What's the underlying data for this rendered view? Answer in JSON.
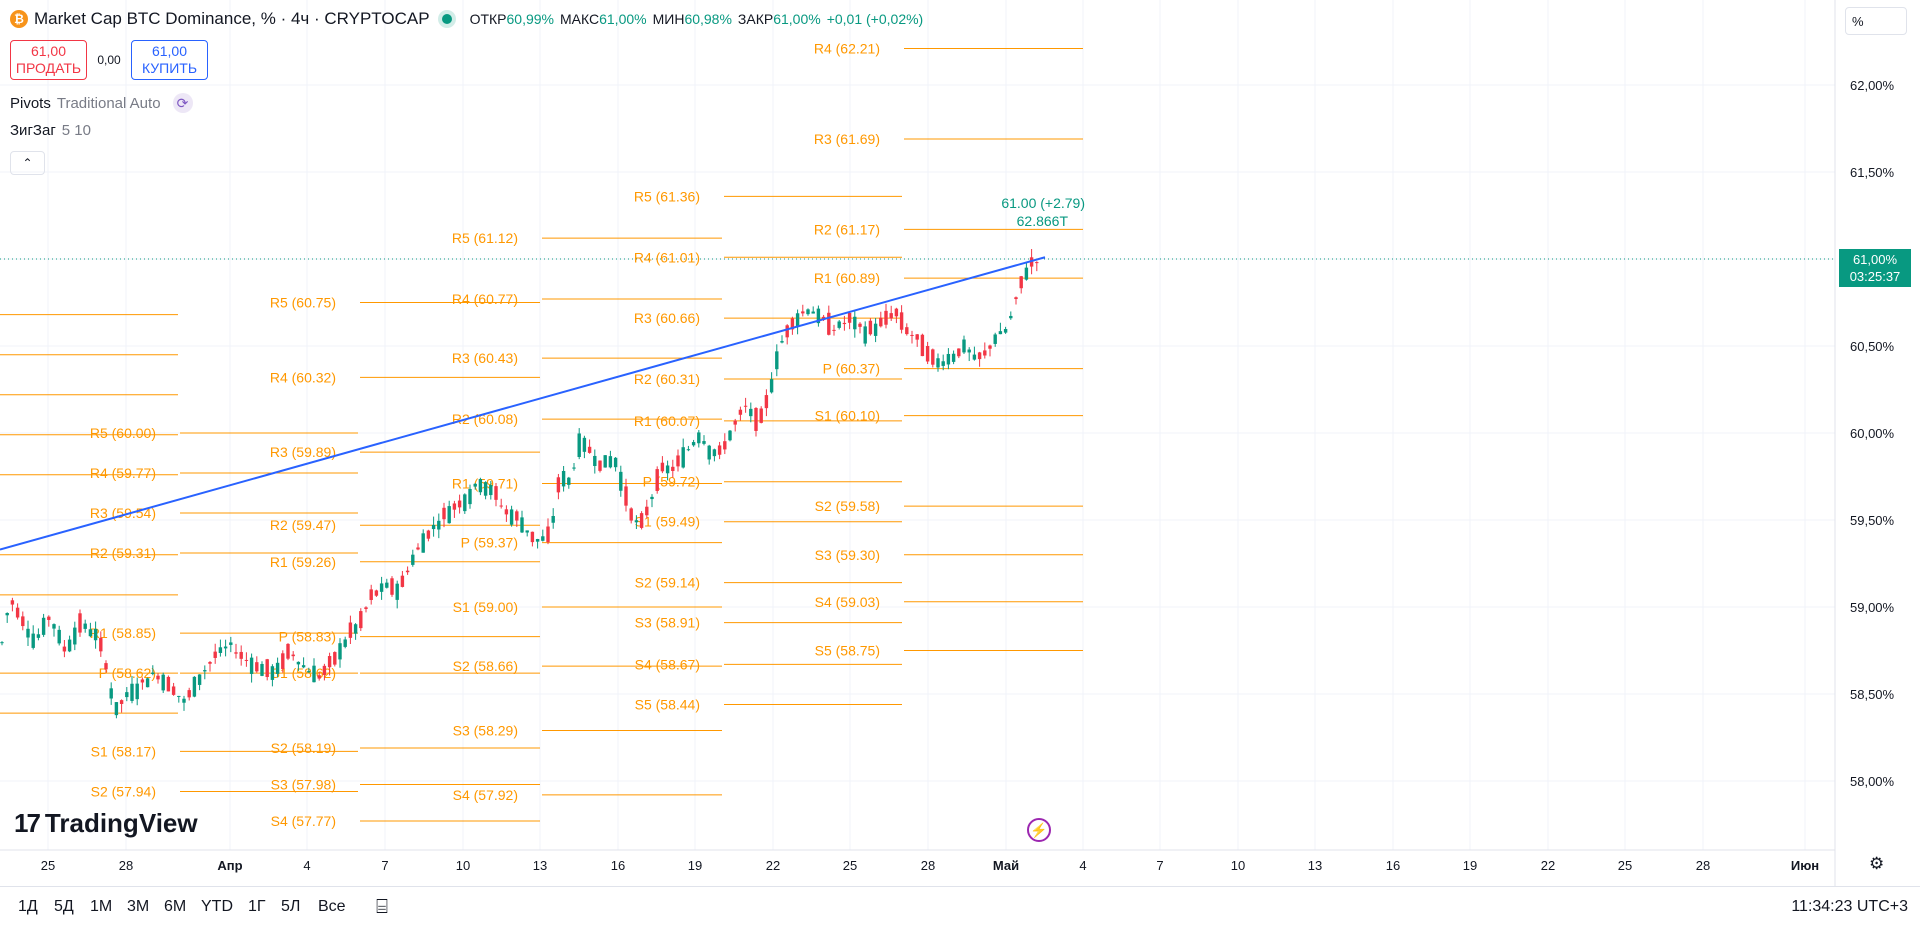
{
  "header": {
    "title": "Market Cap BTC Dominance, % · 4ч · CRYPTOCAP",
    "btc_icon": "₿",
    "ohlc": [
      {
        "key": "ОТКР",
        "value": "60,99%"
      },
      {
        "key": "МАКС",
        "value": "61,00%"
      },
      {
        "key": "МИН",
        "value": "60,98%"
      },
      {
        "key": "ЗАКР",
        "value": "61,00%"
      }
    ],
    "change": "+0,01 (+0,02%)"
  },
  "trade": {
    "sell_price": "61,00",
    "sell_label": "ПРОДАТЬ",
    "spread": "0,00",
    "buy_price": "61,00",
    "buy_label": "КУПИТЬ"
  },
  "indicators": {
    "pivots_name": "Pivots",
    "pivots_params": "Traditional Auto",
    "zigzag_name": "ЗигЗаг",
    "zigzag_params": "5 10",
    "collapse_icon": "⌃"
  },
  "price_axis": {
    "unit": "%",
    "labels": [
      "62,00%",
      "61,50%",
      "61,00%",
      "60,50%",
      "60,00%",
      "59,50%",
      "59,00%",
      "58,50%",
      "58,00%"
    ],
    "current_price": "61,00%",
    "countdown": "03:25:37"
  },
  "time_axis": {
    "labels": [
      "25",
      "28",
      "Апр",
      "4",
      "7",
      "10",
      "13",
      "16",
      "19",
      "22",
      "25",
      "28",
      "Май",
      "4",
      "7",
      "10",
      "13",
      "16",
      "19",
      "22",
      "25",
      "28",
      "Июн"
    ]
  },
  "annotation": {
    "last_change": "61.00 (+2.79)",
    "volume": "62.866T"
  },
  "chart_data": {
    "type": "candlestick",
    "symbol": "Market Cap BTC Dominance, %",
    "interval": "4ч",
    "ylim": [
      57.85,
      62.35
    ],
    "y_unit": "%",
    "current_price": 61.0,
    "trendline": {
      "from": [
        0,
        59.33
      ],
      "to": [
        1045,
        61.01
      ]
    },
    "pivot_sets": [
      {
        "levels": [
          {
            "label": "R5 (60.00)",
            "value": 60.0
          },
          {
            "label": "R4 (59.77)",
            "value": 59.77
          },
          {
            "label": "R3 (59.54)",
            "value": 59.54
          },
          {
            "label": "R2 (59.31)",
            "value": 59.31
          },
          {
            "label": "R1 (58.85)",
            "value": 58.85
          },
          {
            "label": "P (58.62)",
            "value": 58.62
          },
          {
            "label": "S1 (58.17)",
            "value": 58.17
          },
          {
            "label": "S2 (57.94)",
            "value": 57.94
          }
        ]
      },
      {
        "levels": [
          {
            "label": "R5 (60.75)",
            "value": 60.75
          },
          {
            "label": "R4 (60.32)",
            "value": 60.32
          },
          {
            "label": "R3 (59.89)",
            "value": 59.89
          },
          {
            "label": "R2 (59.47)",
            "value": 59.47
          },
          {
            "label": "R1 (59.26)",
            "value": 59.26
          },
          {
            "label": "P (58.83)",
            "value": 58.83
          },
          {
            "label": "S1 (58.62)",
            "value": 58.62
          },
          {
            "label": "S2 (58.19)",
            "value": 58.19
          },
          {
            "label": "S3 (57.98)",
            "value": 57.98
          },
          {
            "label": "S4 (57.77)",
            "value": 57.77
          }
        ]
      },
      {
        "levels": [
          {
            "label": "R5 (61.12)",
            "value": 61.12
          },
          {
            "label": "R4 (60.77)",
            "value": 60.77
          },
          {
            "label": "R3 (60.43)",
            "value": 60.43
          },
          {
            "label": "R2 (60.08)",
            "value": 60.08
          },
          {
            "label": "R1 (59.71)",
            "value": 59.71
          },
          {
            "label": "P (59.37)",
            "value": 59.37
          },
          {
            "label": "S1 (59.00)",
            "value": 59.0
          },
          {
            "label": "S2 (58.66)",
            "value": 58.66
          },
          {
            "label": "S3 (58.29)",
            "value": 58.29
          },
          {
            "label": "S4 (57.92)",
            "value": 57.92
          }
        ]
      },
      {
        "levels": [
          {
            "label": "R5 (61.36)",
            "value": 61.36
          },
          {
            "label": "R4 (61.01)",
            "value": 61.01
          },
          {
            "label": "R3 (60.66)",
            "value": 60.66
          },
          {
            "label": "R2 (60.31)",
            "value": 60.31
          },
          {
            "label": "R1 (60.07)",
            "value": 60.07
          },
          {
            "label": "P (59.72)",
            "value": 59.72
          },
          {
            "label": "S1 (59.49)",
            "value": 59.49
          },
          {
            "label": "S2 (59.14)",
            "value": 59.14
          },
          {
            "label": "S3 (58.91)",
            "value": 58.91
          },
          {
            "label": "S4 (58.67)",
            "value": 58.67
          },
          {
            "label": "S5 (58.44)",
            "value": 58.44
          }
        ]
      },
      {
        "levels": [
          {
            "label": "R4 (62.21)",
            "value": 62.21
          },
          {
            "label": "R3 (61.69)",
            "value": 61.69
          },
          {
            "label": "R2 (61.17)",
            "value": 61.17
          },
          {
            "label": "R1 (60.89)",
            "value": 60.89
          },
          {
            "label": "P (60.37)",
            "value": 60.37
          },
          {
            "label": "S1 (60.10)",
            "value": 60.1
          },
          {
            "label": "S2 (59.58)",
            "value": 59.58
          },
          {
            "label": "S3 (59.30)",
            "value": 59.3
          },
          {
            "label": "S4 (59.03)",
            "value": 59.03
          },
          {
            "label": "S5 (58.75)",
            "value": 58.75
          }
        ]
      }
    ],
    "price_path": [
      [
        0,
        58.73
      ],
      [
        10,
        59.05
      ],
      [
        20,
        58.95
      ],
      [
        35,
        58.8
      ],
      [
        50,
        58.95
      ],
      [
        65,
        58.75
      ],
      [
        80,
        58.9
      ],
      [
        95,
        58.85
      ],
      [
        105,
        58.7
      ],
      [
        115,
        58.4
      ],
      [
        125,
        58.48
      ],
      [
        140,
        58.55
      ],
      [
        155,
        58.62
      ],
      [
        170,
        58.55
      ],
      [
        185,
        58.45
      ],
      [
        200,
        58.6
      ],
      [
        215,
        58.72
      ],
      [
        230,
        58.78
      ],
      [
        245,
        58.7
      ],
      [
        260,
        58.65
      ],
      [
        275,
        58.62
      ],
      [
        290,
        58.75
      ],
      [
        305,
        58.65
      ],
      [
        320,
        58.6
      ],
      [
        335,
        58.7
      ],
      [
        350,
        58.85
      ],
      [
        360,
        58.9
      ],
      [
        370,
        59.05
      ],
      [
        385,
        59.12
      ],
      [
        400,
        59.1
      ],
      [
        410,
        59.25
      ],
      [
        425,
        59.4
      ],
      [
        440,
        59.5
      ],
      [
        455,
        59.58
      ],
      [
        465,
        59.62
      ],
      [
        480,
        59.72
      ],
      [
        495,
        59.65
      ],
      [
        505,
        59.55
      ],
      [
        520,
        59.5
      ],
      [
        535,
        59.38
      ],
      [
        550,
        59.4
      ],
      [
        560,
        59.75
      ],
      [
        570,
        59.72
      ],
      [
        580,
        59.95
      ],
      [
        590,
        59.9
      ],
      [
        600,
        59.82
      ],
      [
        615,
        59.85
      ],
      [
        630,
        59.55
      ],
      [
        640,
        59.45
      ],
      [
        650,
        59.6
      ],
      [
        660,
        59.78
      ],
      [
        675,
        59.8
      ],
      [
        690,
        59.92
      ],
      [
        700,
        60.0
      ],
      [
        710,
        59.9
      ],
      [
        720,
        59.88
      ],
      [
        735,
        60.05
      ],
      [
        745,
        60.15
      ],
      [
        760,
        60.05
      ],
      [
        770,
        60.25
      ],
      [
        780,
        60.5
      ],
      [
        790,
        60.62
      ],
      [
        800,
        60.68
      ],
      [
        810,
        60.72
      ],
      [
        820,
        60.66
      ],
      [
        835,
        60.6
      ],
      [
        850,
        60.65
      ],
      [
        865,
        60.58
      ],
      [
        880,
        60.62
      ],
      [
        895,
        60.7
      ],
      [
        905,
        60.6
      ],
      [
        915,
        60.55
      ],
      [
        925,
        60.48
      ],
      [
        935,
        60.4
      ],
      [
        945,
        60.42
      ],
      [
        955,
        60.45
      ],
      [
        965,
        60.5
      ],
      [
        975,
        60.42
      ],
      [
        985,
        60.45
      ],
      [
        995,
        60.55
      ],
      [
        1005,
        60.58
      ],
      [
        1012,
        60.68
      ],
      [
        1018,
        60.8
      ],
      [
        1025,
        60.92
      ],
      [
        1032,
        60.98
      ],
      [
        1040,
        61.0
      ]
    ]
  }
}
